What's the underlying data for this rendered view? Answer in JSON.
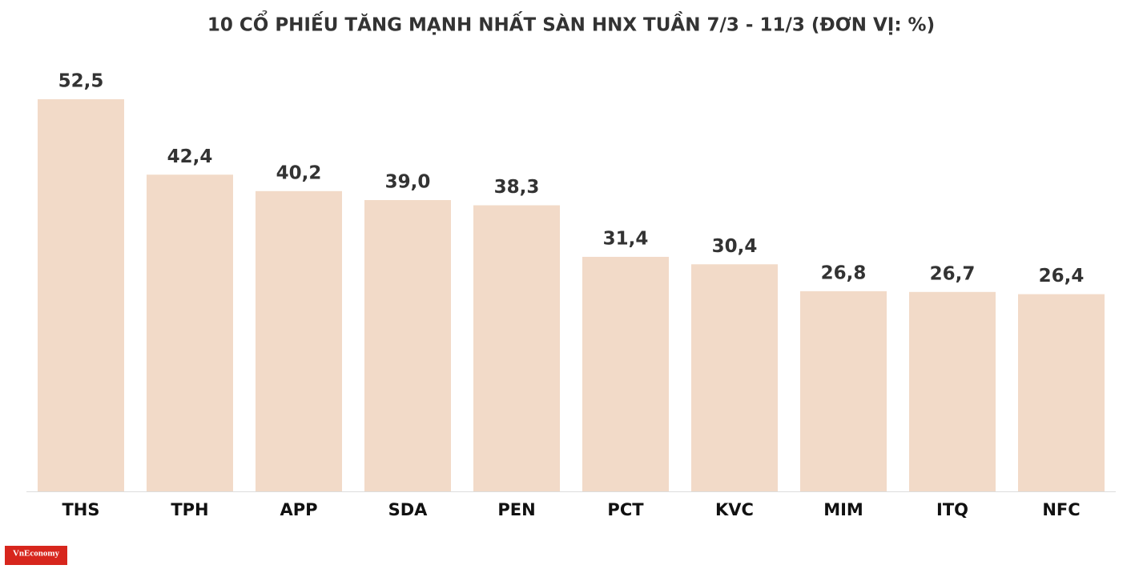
{
  "chart_data": {
    "type": "bar",
    "title": "10 CỔ PHIẾU TĂNG MẠNH NHẤT SÀN HNX TUẦN 7/3 - 11/3 (ĐƠN VỊ: %)",
    "categories": [
      "THS",
      "TPH",
      "APP",
      "SDA",
      "PEN",
      "PCT",
      "KVC",
      "MIM",
      "ITQ",
      "NFC"
    ],
    "values": [
      52.5,
      42.4,
      40.2,
      39.0,
      38.3,
      31.4,
      30.4,
      26.8,
      26.7,
      26.4
    ],
    "value_labels": [
      "52,5",
      "42,4",
      "40,2",
      "39,0",
      "38,3",
      "31,4",
      "30,4",
      "26,8",
      "26,7",
      "26,4"
    ],
    "color": "#f2dac8",
    "ylim": [
      0,
      52.5
    ]
  },
  "brand": "VnEconomy"
}
